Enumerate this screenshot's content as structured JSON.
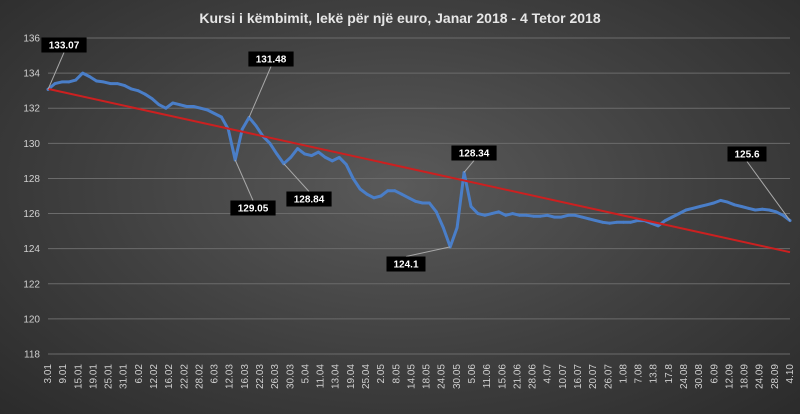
{
  "chart_data": {
    "type": "line",
    "title": "Kursi i këmbimit, lekë për një euro, Janar 2018 - 4 Tetor 2018",
    "xlabel": "",
    "ylabel": "",
    "ylim": [
      118,
      136
    ],
    "yticks": [
      118,
      120,
      122,
      124,
      126,
      128,
      130,
      132,
      134,
      136
    ],
    "grid": true,
    "legend": "none",
    "colors": {
      "series": "#4a7ec8",
      "trend": "#cc2020",
      "annotation_box": "#000000",
      "annotation_text": "#ffffff"
    },
    "x_tick_labels": [
      "3.01",
      "9.01",
      "15.01",
      "19.01",
      "25.01",
      "31.01",
      "6.02",
      "12.02",
      "16.02",
      "22.02",
      "28.02",
      "6.03",
      "12.03",
      "16.03",
      "22.03",
      "26.03",
      "30.03",
      "5.04",
      "11.04",
      "13.04",
      "19.04",
      "25.04",
      "2.05",
      "8.05",
      "14.05",
      "18.05",
      "24.05",
      "30.05",
      "5.06",
      "11.06",
      "15.06",
      "21.06",
      "28.06",
      "4.07",
      "10.07",
      "16.07",
      "20.07",
      "26.07",
      "1.08",
      "7.08",
      "13.8",
      "17.8",
      "24.08",
      "30.08",
      "6.09",
      "12.09",
      "18.09",
      "24.09",
      "28.09",
      "4.10"
    ],
    "series": [
      {
        "values": [
          133.07,
          133.4,
          133.5,
          133.5,
          133.6,
          134.0,
          133.8,
          133.55,
          133.5,
          133.4,
          133.4,
          133.3,
          133.1,
          133.0,
          132.8,
          132.55,
          132.2,
          132.0,
          132.3,
          132.2,
          132.1,
          132.1,
          132.0,
          131.9,
          131.7,
          131.5,
          130.8,
          129.05,
          130.8,
          131.48,
          131.0,
          130.4,
          130.0,
          129.4,
          128.84,
          129.2,
          129.7,
          129.4,
          129.3,
          129.5,
          129.2,
          129.0,
          129.2,
          128.8,
          128.0,
          127.4,
          127.1,
          126.9,
          127.0,
          127.3,
          127.3,
          127.1,
          126.9,
          126.7,
          126.6,
          126.6,
          126.1,
          125.2,
          124.1,
          125.2,
          128.34,
          126.4,
          126.0,
          125.9,
          126.0,
          126.1,
          125.9,
          126.0,
          125.9,
          125.9,
          125.85,
          125.85,
          125.9,
          125.8,
          125.8,
          125.9,
          125.9,
          125.8,
          125.7,
          125.6,
          125.5,
          125.45,
          125.5,
          125.5,
          125.5,
          125.6,
          125.6,
          125.45,
          125.3,
          125.6,
          125.8,
          126.0,
          126.2,
          126.3,
          126.4,
          126.5,
          126.6,
          126.75,
          126.65,
          126.5,
          126.4,
          126.3,
          126.2,
          126.25,
          126.2,
          126.1,
          125.9,
          125.6
        ]
      }
    ],
    "trendline": {
      "start": 133.1,
      "end": 123.8
    },
    "annotations": [
      {
        "label": "133.07",
        "point_index": 0
      },
      {
        "label": "131.48",
        "point_index": 29
      },
      {
        "label": "129.05",
        "point_index": 27
      },
      {
        "label": "128.84",
        "point_index": 34
      },
      {
        "label": "128.34",
        "point_index": 60
      },
      {
        "label": "124.1",
        "point_index": 58
      },
      {
        "label": "125.6",
        "point_index": 107
      }
    ]
  }
}
